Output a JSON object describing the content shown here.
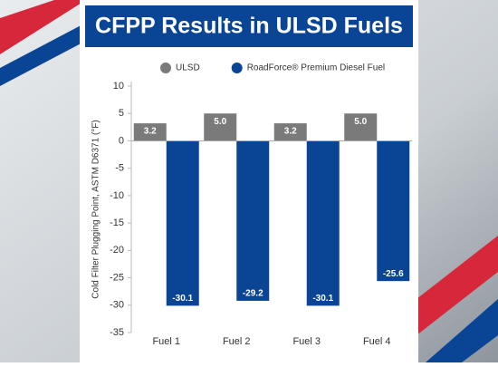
{
  "chart_data": {
    "type": "bar",
    "title": "CFPP Results in ULSD Fuels",
    "y_label": "Cold Filter Plugging Point, ASTM D6371 (°F)",
    "categories": [
      "Fuel 1",
      "Fuel 2",
      "Fuel 3",
      "Fuel 4"
    ],
    "series": [
      {
        "name": "ULSD",
        "color": "#7a7a7a",
        "values": [
          3.2,
          5.0,
          3.2,
          5.0
        ],
        "value_labels": [
          "3.2",
          "5.0",
          "3.2",
          "5.0"
        ]
      },
      {
        "name": "RoadForce® Premium Diesel Fuel",
        "color": "#0a4595",
        "values": [
          -30.1,
          -29.2,
          -30.1,
          -25.6
        ],
        "value_labels": [
          "-30.1",
          "-29.2",
          "-30.1",
          "-25.6"
        ]
      }
    ],
    "ylim": [
      -35,
      10
    ],
    "yticks": [
      -35,
      -30,
      -25,
      -20,
      -15,
      -10,
      -5,
      0,
      5,
      10
    ]
  }
}
